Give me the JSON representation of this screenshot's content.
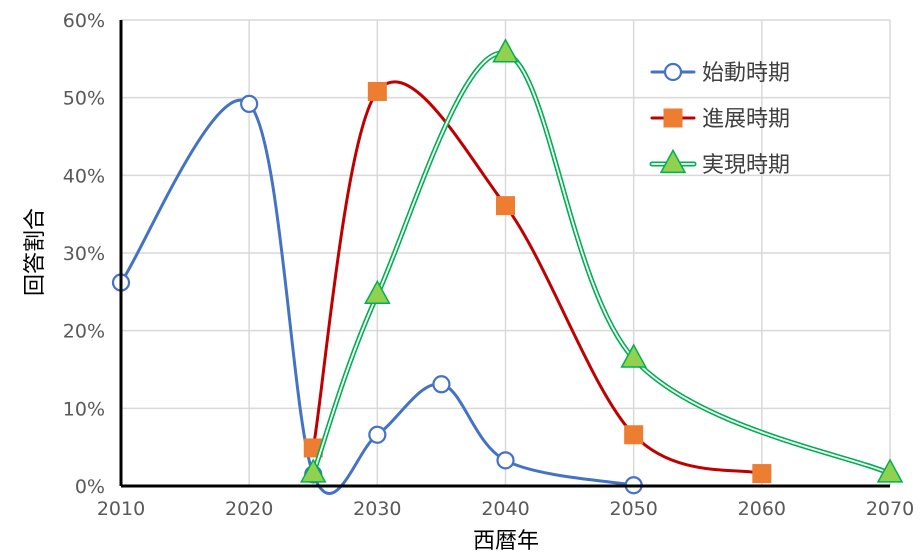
{
  "chart_data": {
    "type": "scatter",
    "title": "",
    "xlabel": "西暦年",
    "ylabel": "回答割合",
    "xlim": [
      2010,
      2070
    ],
    "ylim": [
      0,
      60
    ],
    "x_ticks": [
      "2010",
      "2020",
      "2030",
      "2040",
      "2050",
      "2060",
      "2070"
    ],
    "y_ticks": [
      "0%",
      "10%",
      "20%",
      "30%",
      "40%",
      "50%",
      "60%"
    ],
    "grid": true,
    "legend_position": "top-right",
    "series": [
      {
        "name": "始動時期",
        "color": "#4472c4",
        "marker": "circle-open",
        "line": "single",
        "x": [
          2010,
          2020,
          2025,
          2030,
          2035,
          2040,
          2050
        ],
        "y": [
          26.2,
          49.2,
          1.5,
          6.6,
          13.1,
          3.3,
          0.1
        ]
      },
      {
        "name": "進展時期",
        "color": "#c00000",
        "marker_color": "#ed7d31",
        "marker": "square",
        "line": "single",
        "x": [
          2025,
          2030,
          2040,
          2050,
          2060
        ],
        "y": [
          4.9,
          50.8,
          36.1,
          6.6,
          1.6
        ]
      },
      {
        "name": "実現時期",
        "color": "#00b050",
        "marker_color": "#92d050",
        "marker": "triangle",
        "line": "double",
        "x": [
          2025,
          2030,
          2040,
          2050,
          2070
        ],
        "y": [
          1.6,
          24.6,
          55.7,
          16.4,
          1.6
        ]
      }
    ]
  }
}
